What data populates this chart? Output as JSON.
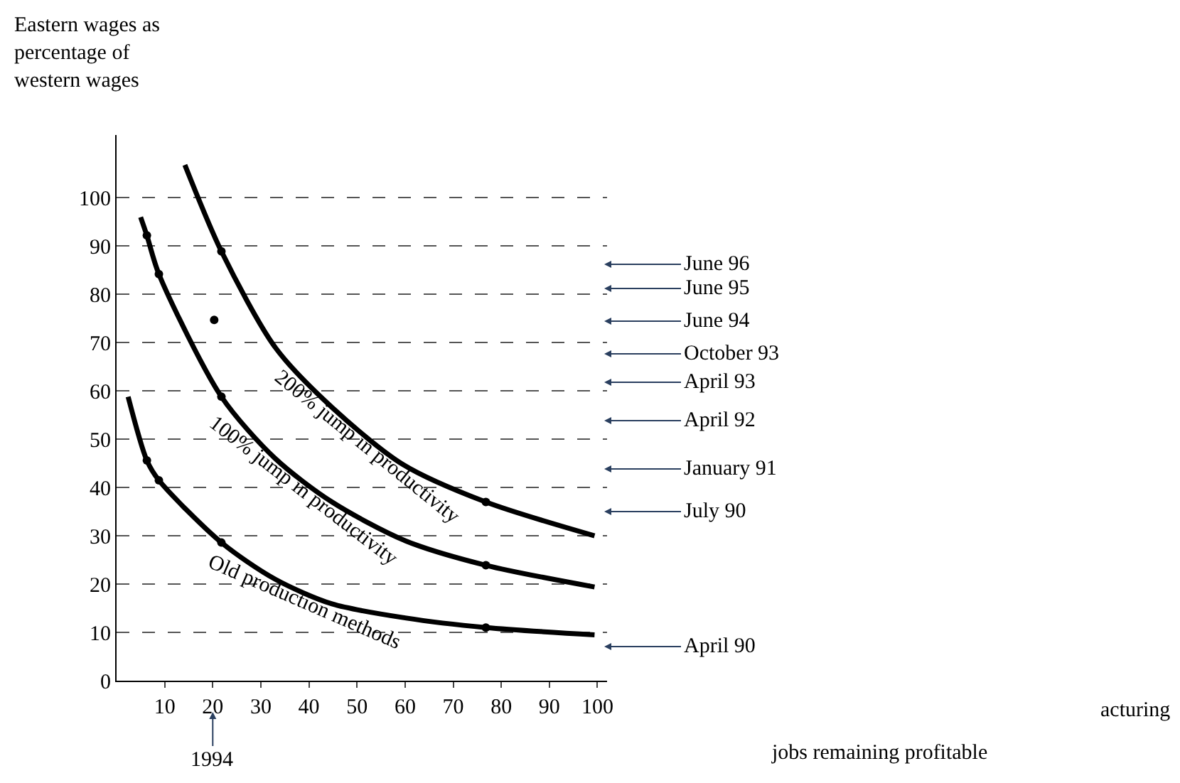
{
  "chart_data": {
    "type": "line",
    "ylabel": "Eastern wages as\npercentage of\nwestern wages",
    "xlim": [
      0,
      102
    ],
    "xticks": [
      10,
      20,
      30,
      40,
      50,
      60,
      70,
      80,
      90,
      100
    ],
    "ylim": [
      0,
      113
    ],
    "yticks": [
      0,
      10,
      20,
      30,
      40,
      50,
      60,
      70,
      80,
      90,
      100
    ],
    "grid": "y",
    "legend": false,
    "series": [
      {
        "name": "200% jump in productivity",
        "color": "#000000",
        "x": [
          14.2,
          21.8,
          33,
          44.8,
          59.5,
          76.8,
          99.4
        ],
        "values": [
          106.8,
          88.9,
          69,
          56.6,
          44.8,
          37,
          30
        ]
      },
      {
        "name": "100% jump in productivity",
        "color": "#000000",
        "x": [
          5,
          6.3,
          8.8,
          21.8,
          33,
          44.8,
          60,
          76.8,
          99.4
        ],
        "values": [
          96,
          92.2,
          84.2,
          58.8,
          46,
          37,
          29,
          23.9,
          19.4
        ]
      },
      {
        "name": "Old production methods",
        "color": "#000000",
        "x": [
          2.4,
          6.3,
          8.8,
          21.8,
          33,
          44.8,
          60,
          76.8,
          99.4
        ],
        "values": [
          58.8,
          45.6,
          41.5,
          28.6,
          21,
          15.9,
          13,
          11,
          9.5
        ]
      },
      {
        "type": "scatter",
        "color": "#000000",
        "marker": "circle",
        "x": [
          21.8,
          76.8,
          6.3,
          8.8,
          21.8,
          76.8,
          6.3,
          8.8,
          21.8,
          76.8,
          20.3
        ],
        "values": [
          88.9,
          37,
          92.2,
          84.2,
          58.8,
          23.9,
          45.6,
          41.5,
          28.6,
          11,
          74.7
        ]
      }
    ],
    "annotations": [
      "June 96",
      "June 95",
      "June 94",
      "October 93",
      "April 93",
      "April 92",
      "January 91",
      "July 90",
      "April 90",
      {
        "text": "1994",
        "x": 20
      },
      "jobs remaining profitable",
      "acturing"
    ]
  }
}
